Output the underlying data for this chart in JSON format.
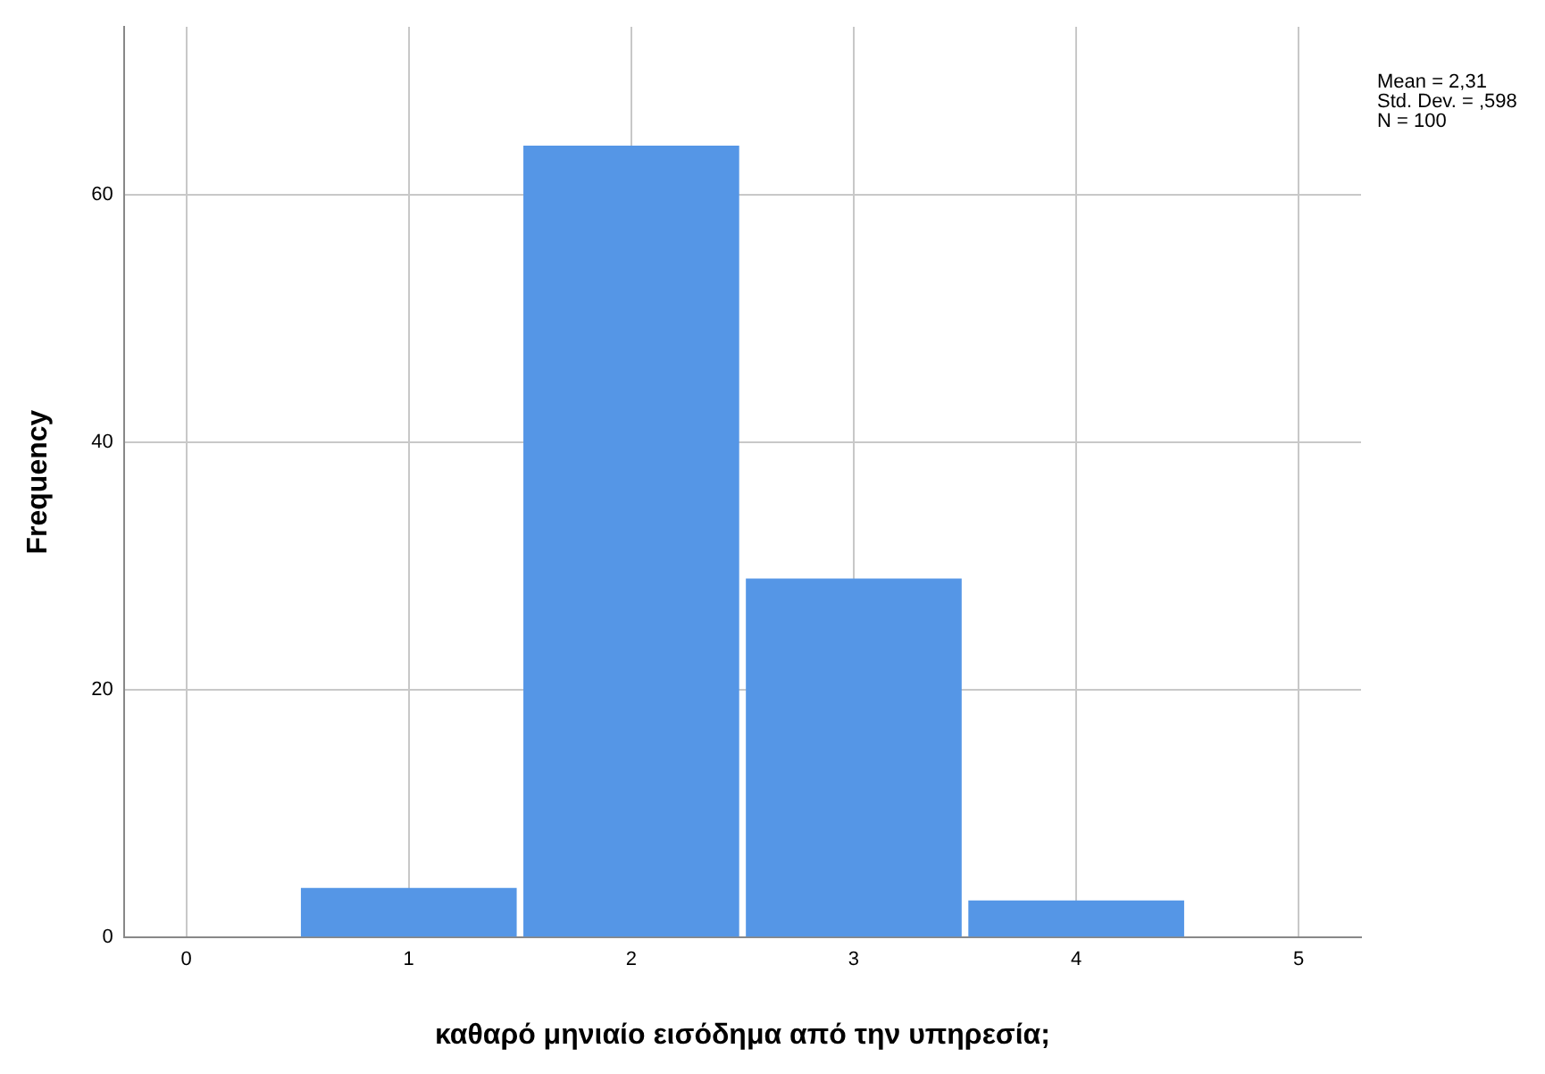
{
  "chart_data": {
    "type": "histogram",
    "xlabel": "καθαρό μηνιαίο εισόδημα από την υπηρεσία;",
    "ylabel": "Frequency",
    "bins": [
      0.5,
      1.5,
      2.5,
      3.5,
      4.5
    ],
    "values": [
      4,
      64,
      29,
      3
    ],
    "color": "#5596e6",
    "xlim": [
      -0.28,
      5.28
    ],
    "xticks": [
      0,
      1,
      2,
      3,
      4,
      5
    ],
    "ylim": [
      0,
      73.6
    ],
    "yticks": [
      0,
      20,
      40,
      60
    ],
    "grid": true,
    "legend": false,
    "annotations": [
      "Mean = 2,31",
      "Std. Dev. = ,598",
      "N = 100"
    ]
  }
}
